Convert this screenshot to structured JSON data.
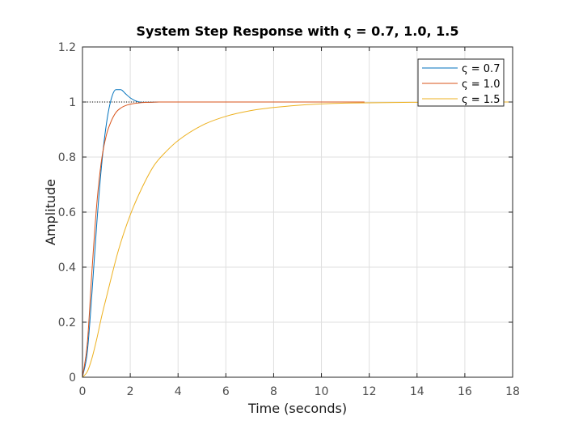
{
  "chart_data": {
    "type": "line",
    "title": "System Step Response with ς = 0.7, 1.0, 1.5",
    "xlabel": "Time (seconds)",
    "ylabel": "Amplitude",
    "xlim": [
      0,
      18
    ],
    "ylim": [
      0,
      1.2
    ],
    "xticks": [
      0,
      2,
      4,
      6,
      8,
      10,
      12,
      14,
      16,
      18
    ],
    "yticks": [
      0,
      0.2,
      0.4,
      0.6,
      0.8,
      1,
      1.2
    ],
    "xtick_labels": [
      "0",
      "2",
      "4",
      "6",
      "8",
      "10",
      "12",
      "14",
      "16",
      "18"
    ],
    "ytick_labels": [
      "0",
      "0.2",
      "0.4",
      "0.6",
      "0.8",
      "1",
      "1.2"
    ],
    "grid": true,
    "legend_position": "top-right",
    "reference_line": {
      "y": 1,
      "x_end": 4,
      "style": "dotted",
      "color": "#000000"
    },
    "series": [
      {
        "name": "ς = 0.7",
        "color": "#0072BD",
        "x": [
          0,
          0.2,
          0.4,
          0.6,
          0.8,
          1.0,
          1.2,
          1.4,
          1.6,
          1.8,
          2.0,
          2.2,
          2.5,
          2.8,
          3.2,
          3.6,
          4.0
        ],
        "y": [
          0,
          0.09,
          0.31,
          0.56,
          0.77,
          0.92,
          1.01,
          1.045,
          1.045,
          1.03,
          1.015,
          1.005,
          0.999,
          0.999,
          1.0,
          1.0,
          1.0
        ]
      },
      {
        "name": "ς = 1.0",
        "color": "#D95319",
        "x": [
          0,
          0.2,
          0.4,
          0.6,
          0.8,
          1.0,
          1.2,
          1.4,
          1.6,
          1.8,
          2.0,
          2.4,
          2.8,
          3.2,
          3.6,
          4.0,
          6,
          8,
          10,
          11.8
        ],
        "y": [
          0,
          0.12,
          0.39,
          0.63,
          0.79,
          0.88,
          0.93,
          0.962,
          0.978,
          0.987,
          0.992,
          0.997,
          0.999,
          1.0,
          1.0,
          1.0,
          1.0,
          1.0,
          1.0,
          1.0
        ]
      },
      {
        "name": "ς = 1.5",
        "color": "#EDB120",
        "x": [
          0,
          0.2,
          0.4,
          0.6,
          0.8,
          1.0,
          1.5,
          2.0,
          2.5,
          3.0,
          3.5,
          4.0,
          5.0,
          6.0,
          7.0,
          8.0,
          9.0,
          10.0,
          11.0,
          12.0,
          14.0,
          16.0,
          18.0
        ],
        "y": [
          0,
          0.02,
          0.07,
          0.14,
          0.22,
          0.29,
          0.46,
          0.59,
          0.69,
          0.77,
          0.82,
          0.86,
          0.915,
          0.948,
          0.968,
          0.98,
          0.988,
          0.993,
          0.996,
          0.997,
          0.999,
          1.0,
          1.0
        ]
      }
    ]
  }
}
